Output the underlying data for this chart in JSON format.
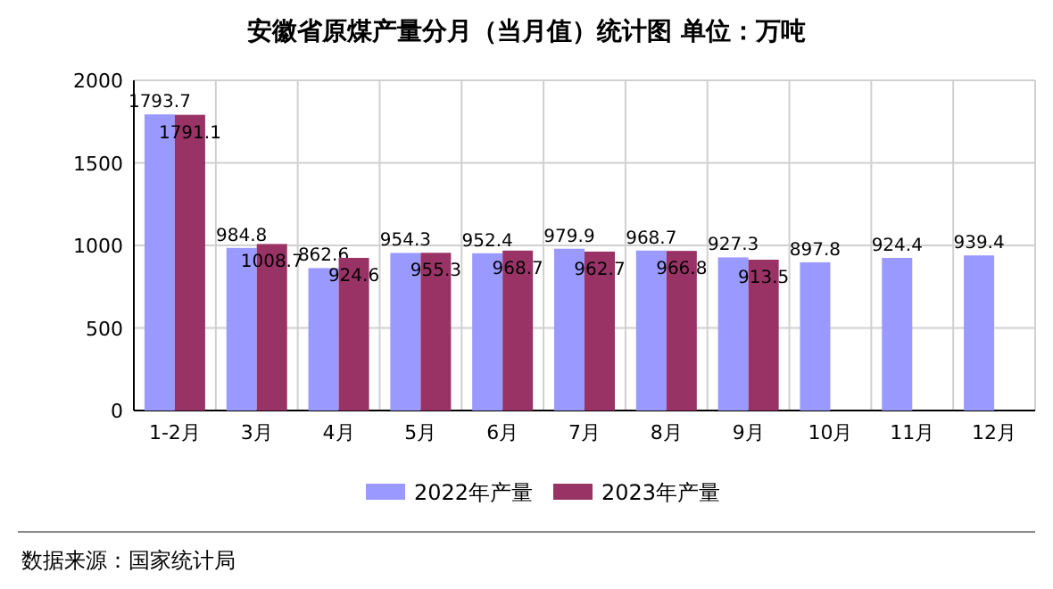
{
  "chart_data": {
    "type": "bar",
    "title": "安徽省原煤产量分月（当月值）统计图 单位：万吨",
    "categories": [
      "1-2月",
      "3月",
      "4月",
      "5月",
      "6月",
      "7月",
      "8月",
      "9月",
      "10月",
      "11月",
      "12月"
    ],
    "series": [
      {
        "name": "2022年产量",
        "color": "#9999ff",
        "values": [
          1793.7,
          984.8,
          862.6,
          954.3,
          952.4,
          979.9,
          968.7,
          927.3,
          897.8,
          924.4,
          939.4
        ]
      },
      {
        "name": "2023年产量",
        "color": "#993366",
        "values": [
          1791.1,
          1008.7,
          924.6,
          955.3,
          968.7,
          962.7,
          966.8,
          913.5,
          null,
          null,
          null
        ]
      }
    ],
    "ylim": [
      0,
      2000
    ],
    "yticks": [
      0,
      500,
      1000,
      1500,
      2000
    ],
    "grid": true,
    "legend": "bottom",
    "data_labels": true,
    "annotations": [
      "数据来源：国家统计局"
    ]
  }
}
